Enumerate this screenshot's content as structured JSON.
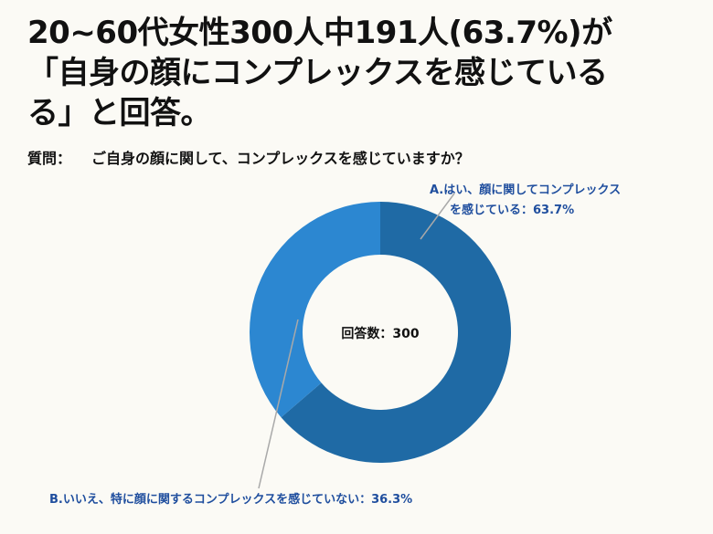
{
  "title": {
    "line1": "20~60代女性300人中191人(63.7%)が",
    "line2": "「自身の顔にコンプレックスを感じている",
    "line3": "る」と回答。"
  },
  "question": {
    "label": "質問：",
    "text": "ご自身の顔に関して、コンプレックスを感じていますか？"
  },
  "center_label": "回答数：300",
  "labels": {
    "a_line1": "A.はい、顔に関してコンプレックス",
    "a_line2": "を感じている：63.7%",
    "b": "B.いいえ、特に顔に関するコンプレックスを感じていない：36.3%"
  },
  "colors": {
    "a": "#1f6aa5",
    "b": "#2c87d1",
    "background": "#fbfaf5",
    "label_text": "#1f4e9e",
    "leader": "#a9a9a9"
  },
  "chart_data": {
    "type": "pie",
    "style": "donut",
    "total": 300,
    "slices": [
      {
        "label": "A.はい、顔に関してコンプレックスを感じている",
        "value": 63.7
      },
      {
        "label": "B.いいえ、特に顔に関するコンプレックスを感じていない",
        "value": 36.3
      }
    ]
  }
}
